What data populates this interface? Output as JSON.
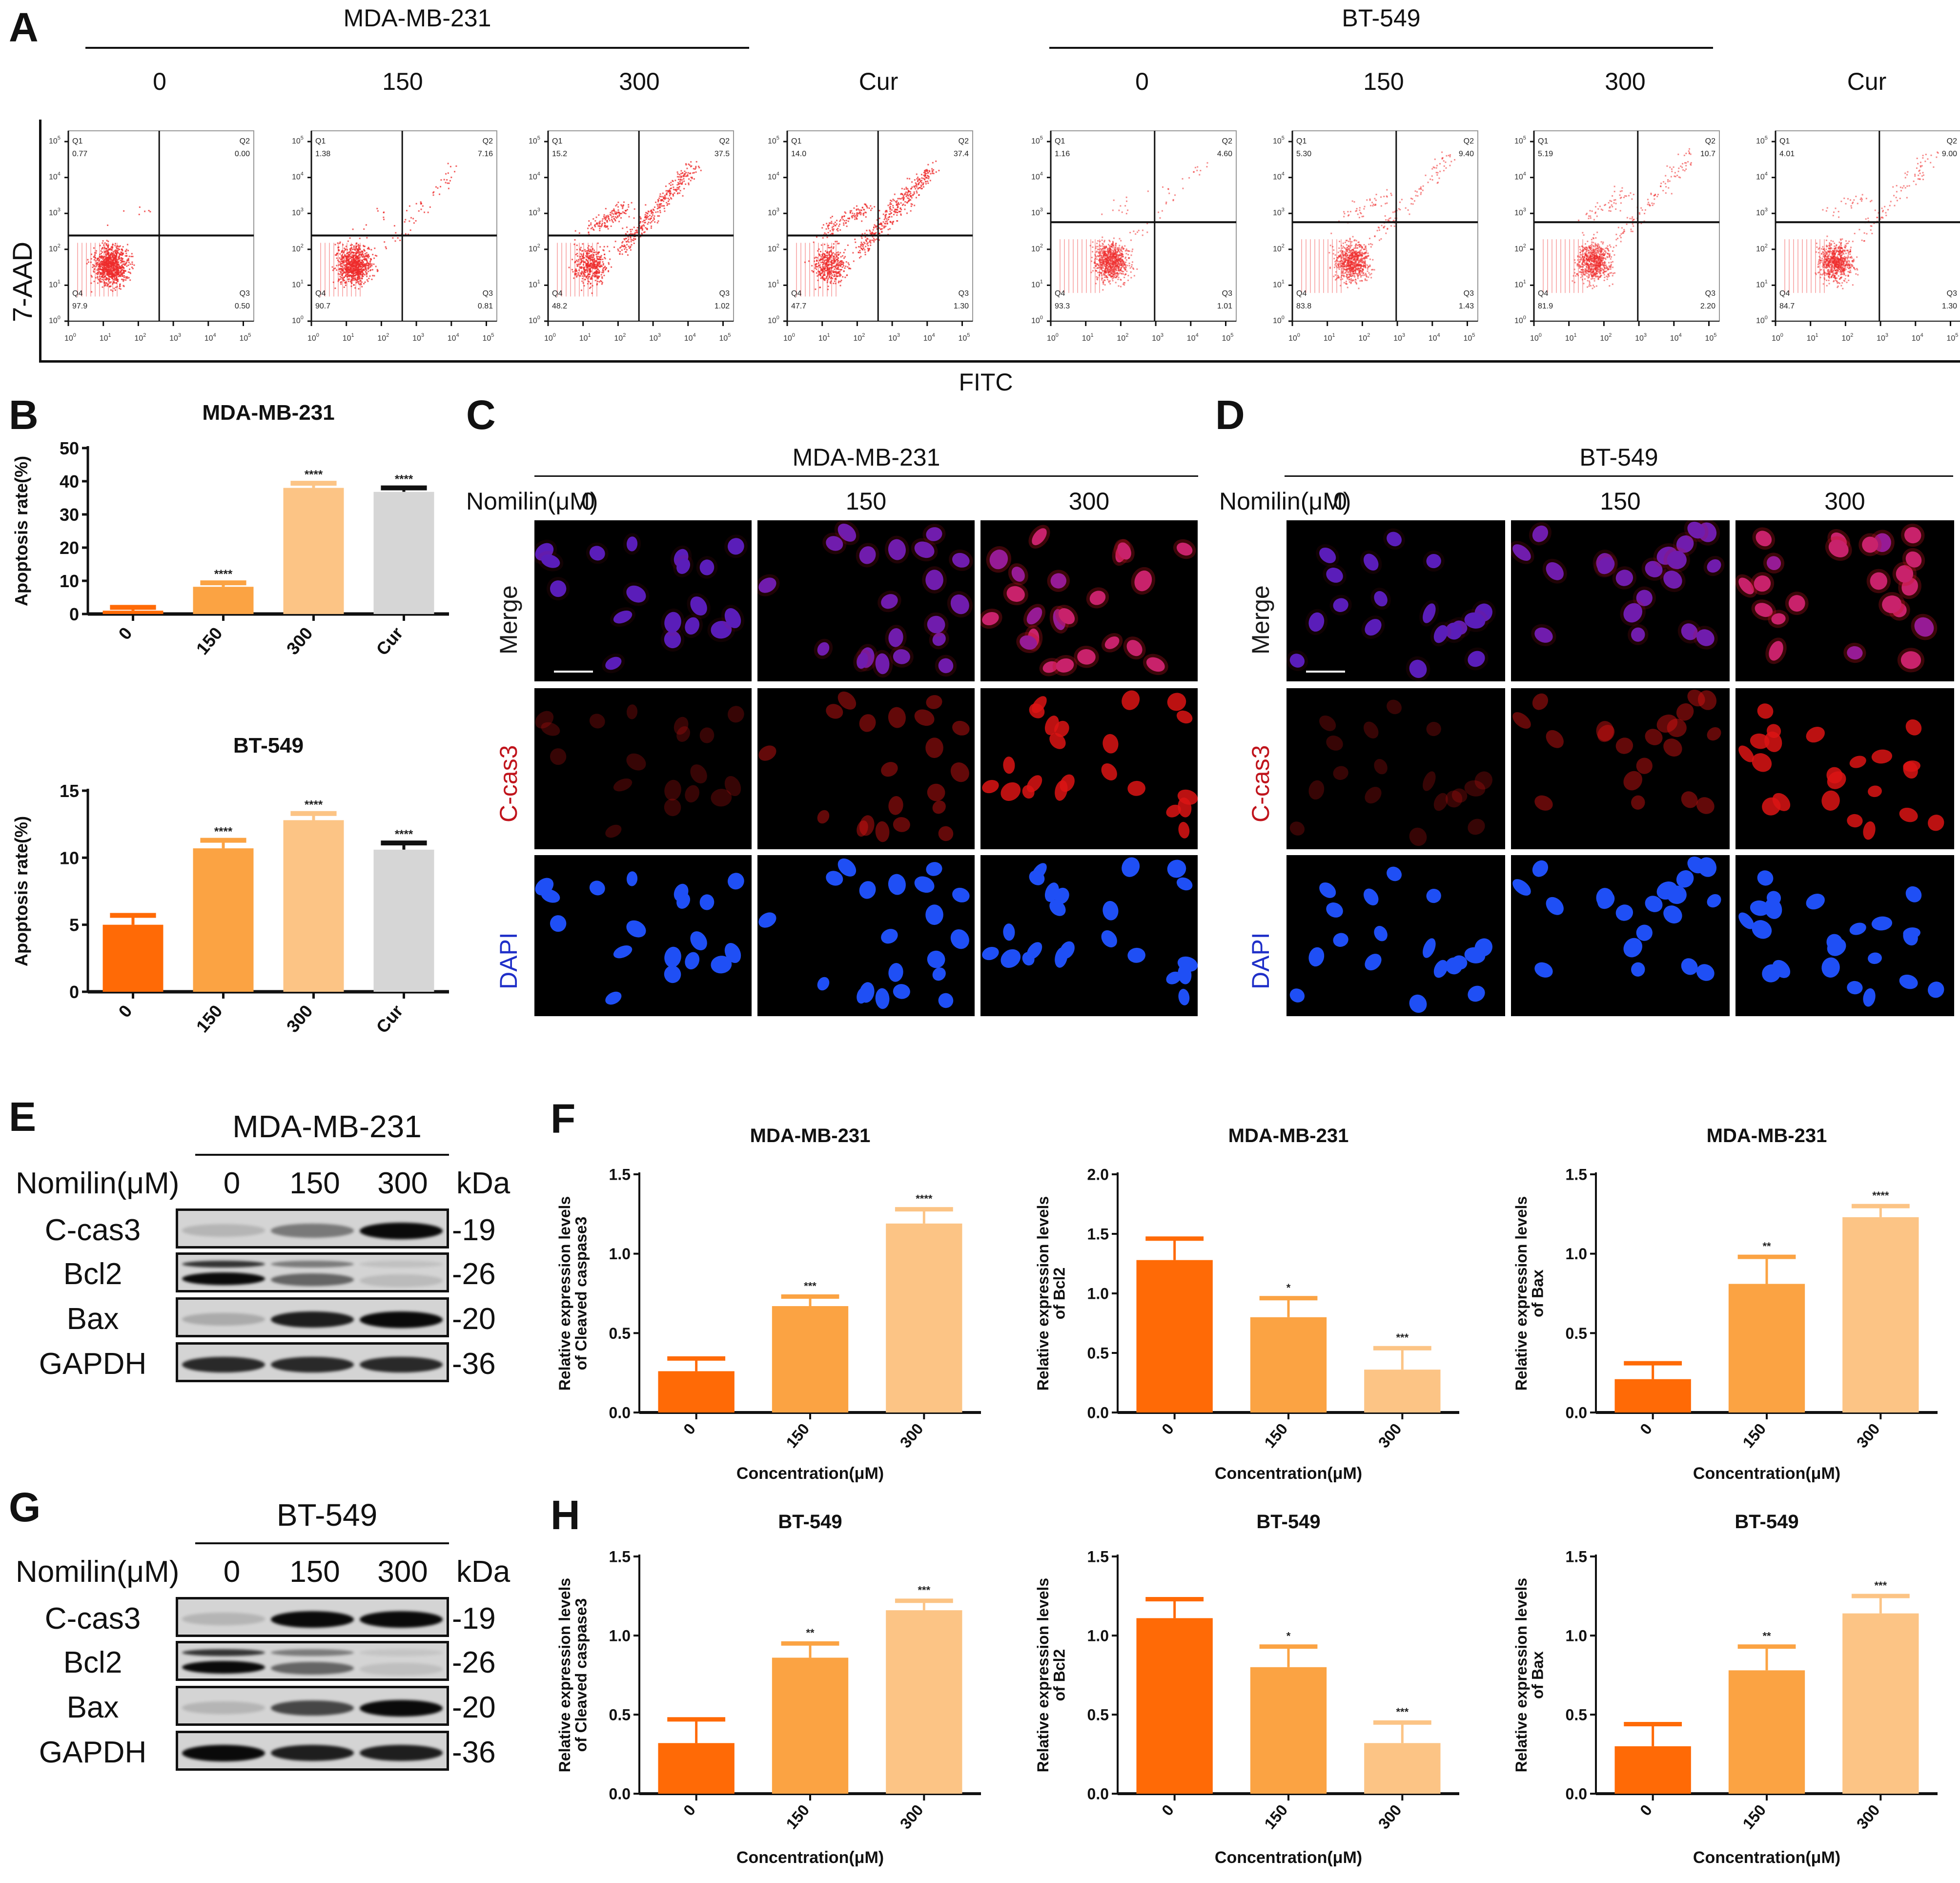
{
  "panels": {
    "A": {
      "label": "A",
      "cell_lines": [
        "MDA-MB-231",
        "BT-549"
      ],
      "conditions": [
        "0",
        "150",
        "300",
        "Cur"
      ],
      "y_axis": "7-AAD",
      "x_axis": "FITC",
      "quadrant_names": [
        "Q1",
        "Q2",
        "Q3",
        "Q4"
      ],
      "plots": [
        {
          "cell_line": "MDA-MB-231",
          "condition": "0",
          "Q1": "0.77",
          "Q2": "0.00",
          "Q3": "0.50",
          "Q4": "97.9"
        },
        {
          "cell_line": "MDA-MB-231",
          "condition": "150",
          "Q1": "1.38",
          "Q2": "7.16",
          "Q3": "0.81",
          "Q4": "90.7"
        },
        {
          "cell_line": "MDA-MB-231",
          "condition": "300",
          "Q1": "15.2",
          "Q2": "37.5",
          "Q3": "1.02",
          "Q4": "48.2"
        },
        {
          "cell_line": "MDA-MB-231",
          "condition": "Cur",
          "Q1": "14.0",
          "Q2": "37.4",
          "Q3": "1.30",
          "Q4": "47.7"
        },
        {
          "cell_line": "BT-549",
          "condition": "0",
          "Q1": "1.16",
          "Q2": "4.60",
          "Q3": "1.01",
          "Q4": "93.3"
        },
        {
          "cell_line": "BT-549",
          "condition": "150",
          "Q1": "5.30",
          "Q2": "9.40",
          "Q3": "1.43",
          "Q4": "83.8"
        },
        {
          "cell_line": "BT-549",
          "condition": "300",
          "Q1": "5.19",
          "Q2": "10.7",
          "Q3": "2.20",
          "Q4": "81.9"
        },
        {
          "cell_line": "BT-549",
          "condition": "Cur",
          "Q1": "4.01",
          "Q2": "9.00",
          "Q3": "1.30",
          "Q4": "84.7"
        }
      ]
    },
    "B": {
      "label": "B"
    },
    "C": {
      "label": "C",
      "cell_line": "MDA-MB-231",
      "treatment_label": "Nomilin(μM)",
      "conditions": [
        "0",
        "150",
        "300"
      ],
      "rows": [
        "Merge",
        "C-cas3",
        "DAPI"
      ]
    },
    "D": {
      "label": "D",
      "cell_line": "BT-549",
      "treatment_label": "Nomilin(μM)",
      "conditions": [
        "0",
        "150",
        "300"
      ],
      "rows": [
        "Merge",
        "C-cas3",
        "DAPI"
      ]
    },
    "E": {
      "label": "E",
      "cell_line": "MDA-MB-231",
      "treatment_label": "Nomilin(μM)",
      "conditions": [
        "0",
        "150",
        "300"
      ],
      "unit": "kDa",
      "proteins": [
        {
          "name": "C-cas3",
          "kda": "-19"
        },
        {
          "name": "Bcl2",
          "kda": "-26"
        },
        {
          "name": "Bax",
          "kda": "-20"
        },
        {
          "name": "GAPDH",
          "kda": "-36"
        }
      ]
    },
    "F": {
      "label": "F"
    },
    "G": {
      "label": "G",
      "cell_line": "BT-549",
      "treatment_label": "Nomilin(μM)",
      "conditions": [
        "0",
        "150",
        "300"
      ],
      "unit": "kDa",
      "proteins": [
        {
          "name": "C-cas3",
          "kda": "-19"
        },
        {
          "name": "Bcl2",
          "kda": "-26"
        },
        {
          "name": "Bax",
          "kda": "-20"
        },
        {
          "name": "GAPDH",
          "kda": "-36"
        }
      ]
    },
    "H": {
      "label": "H"
    }
  },
  "colors": {
    "bar_0": "#ff6a06",
    "bar_150": "#fba343",
    "bar_300": "#fcc485",
    "bar_cur": "#d6d6d6",
    "flow_dots": "#ee2b2b",
    "c_cas3_label": "#c0141c",
    "dapi_label": "#1f2fc8"
  },
  "chart_data": [
    {
      "id": "B1",
      "panel": "B",
      "type": "bar",
      "title": "MDA-MB-231",
      "xlabel": "",
      "ylabel": "Apoptosis rate(%)",
      "categories": [
        "0",
        "150",
        "300",
        "Cur"
      ],
      "values": [
        1.0,
        8.2,
        38.0,
        36.8
      ],
      "errors": [
        1.0,
        1.2,
        1.4,
        1.2
      ],
      "significance": [
        "",
        "****",
        "****",
        "****"
      ],
      "ylim": [
        0,
        50
      ],
      "yticks": [
        "0",
        "10",
        "20",
        "30",
        "40",
        "50"
      ],
      "grid": false
    },
    {
      "id": "B2",
      "panel": "B",
      "type": "bar",
      "title": "BT-549",
      "xlabel": "",
      "ylabel": "Apoptosis rate(%)",
      "categories": [
        "0",
        "150",
        "300",
        "Cur"
      ],
      "values": [
        5.0,
        10.7,
        12.8,
        10.6
      ],
      "errors": [
        0.7,
        0.6,
        0.5,
        0.5
      ],
      "significance": [
        "",
        "****",
        "****",
        "****"
      ],
      "ylim": [
        0,
        15
      ],
      "yticks": [
        "0",
        "5",
        "10",
        "15"
      ],
      "grid": false
    },
    {
      "id": "F1",
      "panel": "F",
      "type": "bar",
      "title": "MDA-MB-231",
      "xlabel": "Concentration(μM)",
      "ylabel": "Relative expression levels of Cleaved caspase3",
      "ylabel_lines": [
        "Relative expression levels",
        "of Cleaved caspase3"
      ],
      "categories": [
        "0",
        "150",
        "300"
      ],
      "values": [
        0.26,
        0.67,
        1.19
      ],
      "errors": [
        0.08,
        0.06,
        0.09
      ],
      "significance": [
        "",
        "***",
        "****"
      ],
      "ylim": [
        0,
        1.5
      ],
      "yticks": [
        "0.0",
        "0.5",
        "1.0",
        "1.5"
      ],
      "grid": false
    },
    {
      "id": "F2",
      "panel": "F",
      "type": "bar",
      "title": "MDA-MB-231",
      "xlabel": "Concentration(μM)",
      "ylabel": "Relative expression levels of Bcl2",
      "ylabel_lines": [
        "Relative expression levels",
        "of Bcl2"
      ],
      "categories": [
        "0",
        "150",
        "300"
      ],
      "values": [
        1.28,
        0.8,
        0.36
      ],
      "errors": [
        0.18,
        0.16,
        0.18
      ],
      "significance": [
        "",
        "*",
        "***"
      ],
      "ylim": [
        0,
        2.0
      ],
      "yticks": [
        "0.0",
        "0.5",
        "1.0",
        "1.5",
        "2.0"
      ],
      "grid": false
    },
    {
      "id": "F3",
      "panel": "F",
      "type": "bar",
      "title": "MDA-MB-231",
      "xlabel": "Concentration(μM)",
      "ylabel": "Relative expression levels of Bax",
      "ylabel_lines": [
        "Relative expression levels",
        "of Bax"
      ],
      "categories": [
        "0",
        "150",
        "300"
      ],
      "values": [
        0.21,
        0.81,
        1.23
      ],
      "errors": [
        0.1,
        0.17,
        0.07
      ],
      "significance": [
        "",
        "**",
        "****"
      ],
      "ylim": [
        0,
        1.5
      ],
      "yticks": [
        "0.0",
        "0.5",
        "1.0",
        "1.5"
      ],
      "grid": false
    },
    {
      "id": "H1",
      "panel": "H",
      "type": "bar",
      "title": "BT-549",
      "xlabel": "Concentration(μM)",
      "ylabel": "Relative expression levels of Cleaved caspase3",
      "ylabel_lines": [
        "Relative expression levels",
        "of Cleaved caspase3"
      ],
      "categories": [
        "0",
        "150",
        "300"
      ],
      "values": [
        0.32,
        0.86,
        1.16
      ],
      "errors": [
        0.15,
        0.09,
        0.06
      ],
      "significance": [
        "",
        "**",
        "***"
      ],
      "ylim": [
        0,
        1.5
      ],
      "yticks": [
        "0.0",
        "0.5",
        "1.0",
        "1.5"
      ],
      "grid": false
    },
    {
      "id": "H2",
      "panel": "H",
      "type": "bar",
      "title": "BT-549",
      "xlabel": "Concentration(μM)",
      "ylabel": "Relative expression levels of Bcl2",
      "ylabel_lines": [
        "Relative expression levels",
        "of Bcl2"
      ],
      "categories": [
        "0",
        "150",
        "300"
      ],
      "values": [
        1.11,
        0.8,
        0.32
      ],
      "errors": [
        0.12,
        0.13,
        0.13
      ],
      "significance": [
        "",
        "*",
        "***"
      ],
      "ylim": [
        0,
        1.5
      ],
      "yticks": [
        "0.0",
        "0.5",
        "1.0",
        "1.5"
      ],
      "grid": false
    },
    {
      "id": "H3",
      "panel": "H",
      "type": "bar",
      "title": "BT-549",
      "xlabel": "Concentration(μM)",
      "ylabel": "Relative expression levels of Bax",
      "ylabel_lines": [
        "Relative expression levels",
        "of Bax"
      ],
      "categories": [
        "0",
        "150",
        "300"
      ],
      "values": [
        0.3,
        0.78,
        1.14
      ],
      "errors": [
        0.14,
        0.15,
        0.11
      ],
      "significance": [
        "",
        "**",
        "***"
      ],
      "ylim": [
        0,
        1.5
      ],
      "yticks": [
        "0.0",
        "0.5",
        "1.0",
        "1.5"
      ],
      "grid": false
    }
  ]
}
